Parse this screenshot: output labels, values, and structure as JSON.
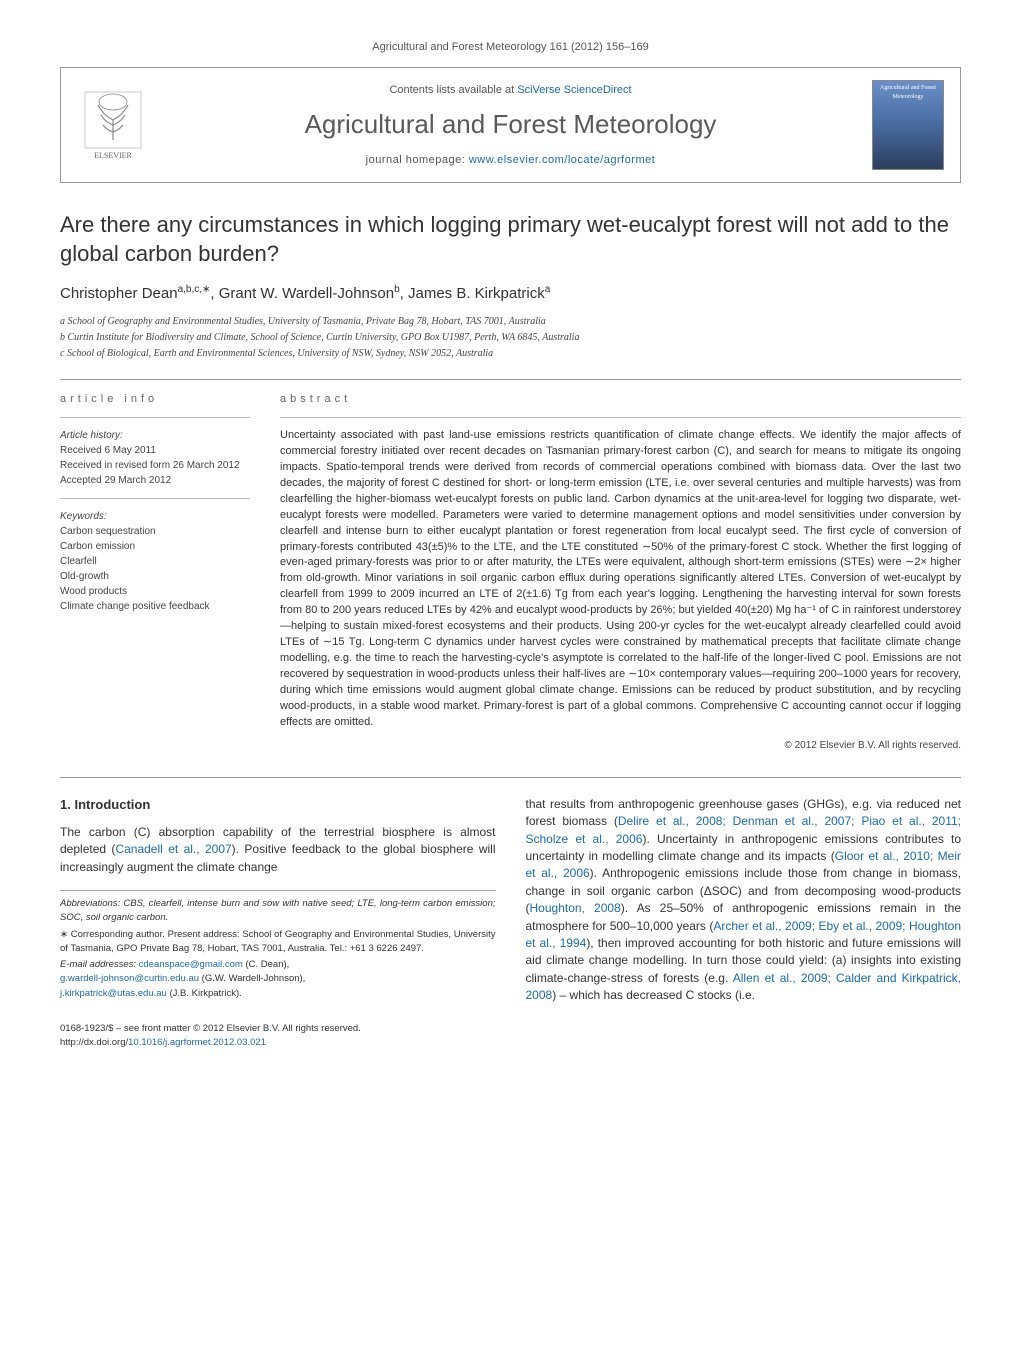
{
  "pageHeader": "Agricultural and Forest Meteorology 161 (2012) 156–169",
  "headerBox": {
    "publisherName": "ELSEVIER",
    "contentsPrefix": "Contents lists available at ",
    "contentsLink": "SciVerse ScienceDirect",
    "journalName": "Agricultural and Forest Meteorology",
    "homepagePrefix": "journal homepage: ",
    "homepageLink": "www.elsevier.com/locate/agrformet",
    "coverText": "Agricultural and Forest Meteorology"
  },
  "title": "Are there any circumstances in which logging primary wet-eucalypt forest will not add to the global carbon burden?",
  "authorsHtml": "Christopher Dean<sup>a,b,c,∗</sup>, Grant W. Wardell-Johnson<sup>b</sup>, James B. Kirkpatrick<sup>a</sup>",
  "affiliations": [
    "a School of Geography and Environmental Studies, University of Tasmania, Private Bag 78, Hobart, TAS 7001, Australia",
    "b Curtin Institute for Biodiversity and Climate, School of Science, Curtin University, GPO Box U1987, Perth, WA 6845, Australia",
    "c School of Biological, Earth and Environmental Sciences, University of NSW, Sydney, NSW 2052, Australia"
  ],
  "articleInfo": {
    "heading": "article info",
    "historyLabel": "Article history:",
    "history": [
      "Received 6 May 2011",
      "Received in revised form 26 March 2012",
      "Accepted 29 March 2012"
    ],
    "keywordsLabel": "Keywords:",
    "keywords": [
      "Carbon sequestration",
      "Carbon emission",
      "Clearfell",
      "Old-growth",
      "Wood products",
      "Climate change positive feedback"
    ]
  },
  "abstract": {
    "heading": "abstract",
    "text": "Uncertainty associated with past land-use emissions restricts quantification of climate change effects. We identify the major affects of commercial forestry initiated over recent decades on Tasmanian primary-forest carbon (C), and search for means to mitigate its ongoing impacts. Spatio-temporal trends were derived from records of commercial operations combined with biomass data. Over the last two decades, the majority of forest C destined for short- or long-term emission (LTE, i.e. over several centuries and multiple harvests) was from clearfelling the higher-biomass wet-eucalypt forests on public land. Carbon dynamics at the unit-area-level for logging two disparate, wet-eucalypt forests were modelled. Parameters were varied to determine management options and model sensitivities under conversion by clearfell and intense burn to either eucalypt plantation or forest regeneration from local eucalypt seed. The first cycle of conversion of primary-forests contributed 43(±5)% to the LTE, and the LTE constituted ∼50% of the primary-forest C stock. Whether the first logging of even-aged primary-forests was prior to or after maturity, the LTEs were equivalent, although short-term emissions (STEs) were ∼2× higher from old-growth. Minor variations in soil organic carbon efflux during operations significantly altered LTEs. Conversion of wet-eucalypt by clearfell from 1999 to 2009 incurred an LTE of 2(±1.6) Tg from each year's logging. Lengthening the harvesting interval for sown forests from 80 to 200 years reduced LTEs by 42% and eucalypt wood-products by 26%; but yielded 40(±20) Mg ha⁻¹ of C in rainforest understorey—helping to sustain mixed-forest ecosystems and their products. Using 200-yr cycles for the wet-eucalypt already clearfelled could avoid LTEs of ∼15 Tg. Long-term C dynamics under harvest cycles were constrained by mathematical precepts that facilitate climate change modelling, e.g. the time to reach the harvesting-cycle's asymptote is correlated to the half-life of the longer-lived C pool. Emissions are not recovered by sequestration in wood-products unless their half-lives are ∼10× contemporary values—requiring 200–1000 years for recovery, during which time emissions would augment global climate change. Emissions can be reduced by product substitution, and by recycling wood-products, in a stable wood market. Primary-forest is part of a global commons. Comprehensive C accounting cannot occur if logging effects are omitted.",
    "copyright": "© 2012 Elsevier B.V. All rights reserved."
  },
  "section1": {
    "heading": "1. Introduction",
    "col1Html": "<span class=\"indent\"></span>The carbon (C) absorption capability of the terrestrial biosphere is almost depleted (<span class=\"cite\">Canadell et al., 2007</span>). Positive feedback to the global biosphere will increasingly augment the climate change",
    "col2Html": "that results from anthropogenic greenhouse gases (GHGs), e.g. via reduced net forest biomass (<span class=\"cite\">Delire et al., 2008; Denman et al., 2007; Piao et al., 2011; Scholze et al., 2006</span>). Uncertainty in anthropogenic emissions contributes to uncertainty in modelling climate change and its impacts (<span class=\"cite\">Gloor et al., 2010; Meir et al., 2006</span>). Anthropogenic emissions include those from change in biomass, change in soil organic carbon (ΔSOC) and from decomposing wood-products (<span class=\"cite\">Houghton, 2008</span>). As 25–50% of anthropogenic emissions remain in the atmosphere for 500–10,000 years (<span class=\"cite\">Archer et al., 2009; Eby et al., 2009; Houghton et al., 1994</span>), then improved accounting for both historic and future emissions will aid climate change modelling. In turn those could yield: (a) insights into existing climate-change-stress of forests (e.g. <span class=\"cite\">Allen et al., 2009; Calder and Kirkpatrick, 2008</span>) – which has decreased C stocks (i.e."
  },
  "footnotes": {
    "abbrev": "Abbreviations: CBS, clearfell, intense burn and sow with native seed; LTE, long-term carbon emission; SOC, soil organic carbon.",
    "corresponding": "∗ Corresponding author. Present address: School of Geography and Environmental Studies, University of Tasmania, GPO Private Bag 78, Hobart, TAS 7001, Australia. Tel.: +61 3 6226 2497.",
    "emailLabel": "E-mail addresses: ",
    "emails": [
      {
        "addr": "cdeanspace@gmail.com",
        "who": " (C. Dean),"
      },
      {
        "addr": "g.wardell-johnson@curtin.edu.au",
        "who": " (G.W. Wardell-Johnson),"
      },
      {
        "addr": "j.kirkpatrick@utas.edu.au",
        "who": " (J.B. Kirkpatrick)."
      }
    ]
  },
  "footer": {
    "line1": "0168-1923/$ – see front matter © 2012 Elsevier B.V. All rights reserved.",
    "doiLabel": "http://dx.doi.org/",
    "doi": "10.1016/j.agrformet.2012.03.021"
  },
  "colors": {
    "link": "#1a6bb3",
    "text": "#333333",
    "rule": "#999999",
    "coverTop": "#6b8fc9",
    "coverBottom": "#2d3e5e"
  },
  "typography": {
    "bodyFont": "Arial, sans-serif",
    "titleSize": 22,
    "journalNameSize": 26,
    "abstractSize": 11,
    "bodySize": 12,
    "footnoteSize": 9.5
  }
}
